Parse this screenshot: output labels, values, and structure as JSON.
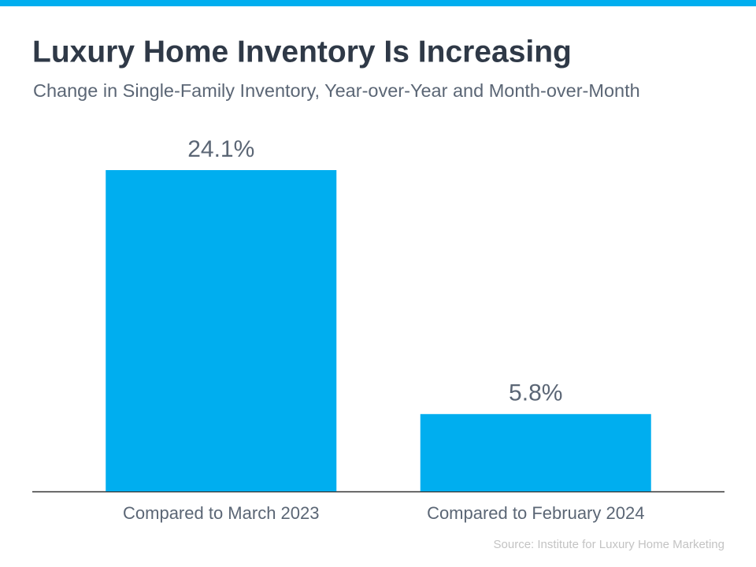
{
  "chart_data": {
    "type": "bar",
    "title": "Luxury Home Inventory Is Increasing",
    "subtitle": "Change in Single-Family Inventory, Year-over-Year and Month-over-Month",
    "categories": [
      "Compared to March 2023",
      "Compared to February 2024"
    ],
    "values": [
      24.1,
      5.8
    ],
    "value_labels": [
      "24.1%",
      "5.8%"
    ],
    "color": "#00aeef",
    "source": "Source: Institute for Luxury Home Marketing"
  }
}
